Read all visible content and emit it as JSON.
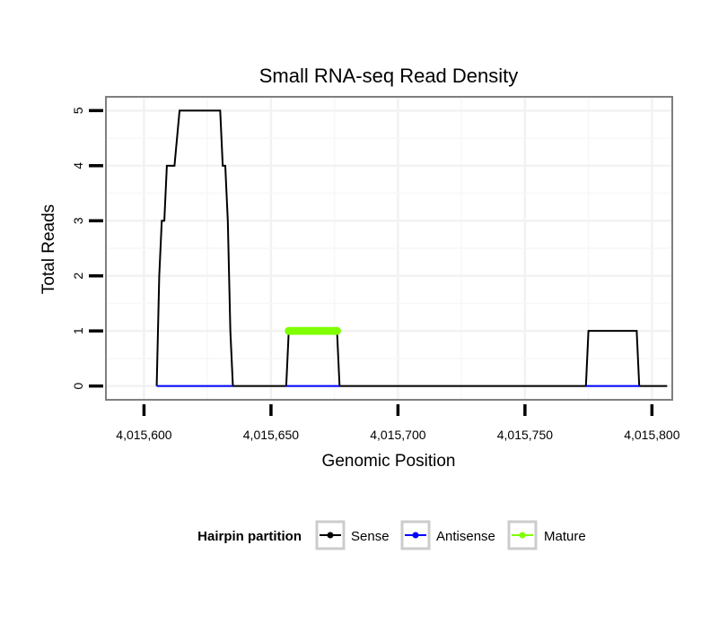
{
  "chart_data": {
    "type": "line",
    "title": "Small RNA-seq Read Density",
    "xlabel": "Genomic Position",
    "ylabel": "Total Reads",
    "xlim": [
      4015585,
      4015808
    ],
    "ylim": [
      -0.25,
      5.25
    ],
    "x_ticks": [
      4015600,
      4015650,
      4015700,
      4015750,
      4015800
    ],
    "x_tick_labels": [
      "4,015,600",
      "4,015,650",
      "4,015,700",
      "4,015,750",
      "4,015,800"
    ],
    "y_ticks": [
      0,
      1,
      2,
      3,
      4,
      5
    ],
    "y_tick_labels": [
      "0",
      "1",
      "2",
      "3",
      "4",
      "5"
    ],
    "grid": true,
    "legend": {
      "title": "Hairpin partition",
      "position": "bottom",
      "entries": [
        "Sense",
        "Antisense",
        "Mature"
      ]
    },
    "series": [
      {
        "name": "Sense",
        "color": "#000000",
        "points": [
          [
            4015605,
            0
          ],
          [
            4015606,
            2
          ],
          [
            4015607,
            3
          ],
          [
            4015608,
            3
          ],
          [
            4015609,
            4
          ],
          [
            4015612,
            4
          ],
          [
            4015614,
            5
          ],
          [
            4015630,
            5
          ],
          [
            4015631,
            4
          ],
          [
            4015632,
            4
          ],
          [
            4015633,
            3
          ],
          [
            4015634,
            1
          ],
          [
            4015635,
            0
          ],
          [
            4015656,
            0
          ],
          [
            4015657,
            1
          ],
          [
            4015676,
            1
          ],
          [
            4015677,
            0
          ],
          [
            4015774,
            0
          ],
          [
            4015775,
            1
          ],
          [
            4015794,
            1
          ],
          [
            4015795,
            0
          ],
          [
            4015806,
            0
          ]
        ]
      },
      {
        "name": "Antisense",
        "color": "#0000ff",
        "points": [
          [
            4015605,
            0
          ],
          [
            4015635,
            0
          ],
          [
            4015656,
            0
          ],
          [
            4015677,
            0
          ],
          [
            4015774,
            0
          ],
          [
            4015795,
            0
          ]
        ]
      },
      {
        "name": "Mature",
        "color": "#7fff00",
        "points": [
          [
            4015657,
            1
          ],
          [
            4015658,
            1
          ],
          [
            4015659,
            1
          ],
          [
            4015660,
            1
          ],
          [
            4015661,
            1
          ],
          [
            4015662,
            1
          ],
          [
            4015663,
            1
          ],
          [
            4015664,
            1
          ],
          [
            4015665,
            1
          ],
          [
            4015666,
            1
          ],
          [
            4015667,
            1
          ],
          [
            4015668,
            1
          ],
          [
            4015669,
            1
          ],
          [
            4015670,
            1
          ],
          [
            4015671,
            1
          ],
          [
            4015672,
            1
          ],
          [
            4015673,
            1
          ],
          [
            4015674,
            1
          ],
          [
            4015675,
            1
          ],
          [
            4015676,
            1
          ]
        ]
      }
    ]
  }
}
